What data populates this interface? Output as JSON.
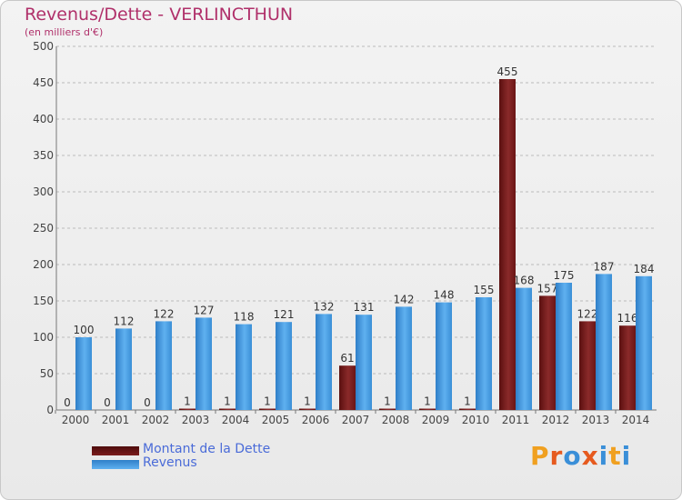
{
  "header": {
    "title": "Revenus/Dette - VERLINCTHUN",
    "subtitle": "(en milliers d'€)"
  },
  "logo": {
    "text": "Proxiti",
    "colors": [
      "#f0a020",
      "#e65a1e",
      "#3a8fd8",
      "#e65a1e",
      "#3a8fd8",
      "#f0a020",
      "#3a8fd8"
    ]
  },
  "colors": {
    "dette": "#7a1c1c",
    "revenus": "#3c8fd6",
    "label_text": "#333333",
    "legend_text": "#4a6bd8"
  },
  "chart_data": {
    "type": "bar",
    "title": "Revenus/Dette - VERLINCTHUN",
    "subtitle": "(en milliers d'€)",
    "categories": [
      "2000",
      "2001",
      "2002",
      "2003",
      "2004",
      "2005",
      "2006",
      "2007",
      "2008",
      "2009",
      "2010",
      "2011",
      "2012",
      "2013",
      "2014"
    ],
    "series": [
      {
        "name": "Montant de la Dette",
        "values": [
          0,
          0,
          0,
          1,
          1,
          1,
          1,
          61,
          1,
          1,
          1,
          455,
          157,
          122,
          116
        ]
      },
      {
        "name": "Revenus",
        "values": [
          100,
          112,
          122,
          127,
          118,
          121,
          132,
          131,
          142,
          148,
          155,
          168,
          175,
          187,
          184
        ]
      }
    ],
    "ylim": [
      0,
      500
    ],
    "yticks": [
      0,
      50,
      100,
      150,
      200,
      250,
      300,
      350,
      400,
      450,
      500
    ],
    "grid": true,
    "legend": "bottom-left"
  }
}
